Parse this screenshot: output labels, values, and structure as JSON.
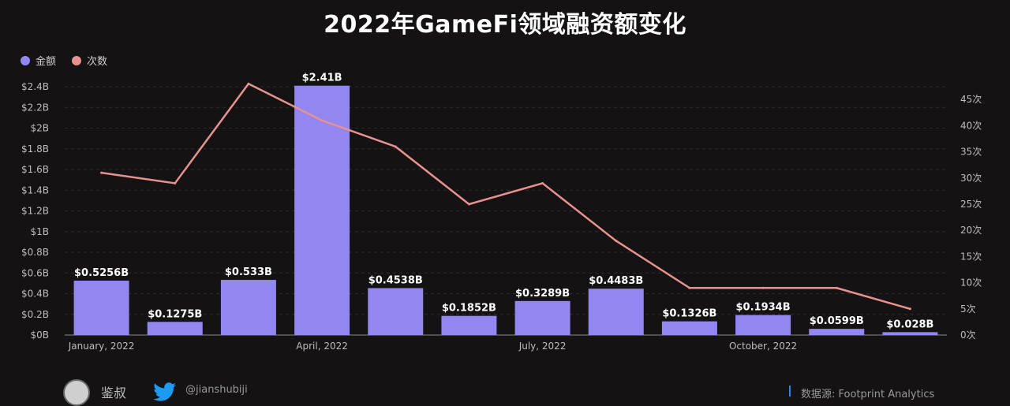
{
  "title": "2022年GameFi领域融资额变化",
  "legend": {
    "amount": {
      "label": "金额",
      "color": "#9287f0"
    },
    "count": {
      "label": "次数",
      "color": "#e8928f"
    }
  },
  "chart_data": {
    "type": "bar",
    "title": "2022年GameFi领域融资额变化",
    "categories": [
      "2022-01",
      "2022-02",
      "2022-03",
      "2022-04",
      "2022-05",
      "2022-06",
      "2022-07",
      "2022-08",
      "2022-09",
      "2022-10",
      "2022-11",
      "2022-12"
    ],
    "x_tick_labels": [
      {
        "index": 0,
        "label": "January, 2022"
      },
      {
        "index": 3,
        "label": "April, 2022"
      },
      {
        "index": 6,
        "label": "July, 2022"
      },
      {
        "index": 9,
        "label": "October, 2022"
      }
    ],
    "series": [
      {
        "name": "金额",
        "type": "bar",
        "axis": "left",
        "color": "#9287f0",
        "values": [
          0.5256,
          0.1275,
          0.533,
          2.41,
          0.4538,
          0.1852,
          0.3289,
          0.4483,
          0.1326,
          0.1934,
          0.0599,
          0.028
        ],
        "data_labels": [
          "$0.5256B",
          "$0.1275B",
          "$0.533B",
          "$2.41B",
          "$0.4538B",
          "$0.1852B",
          "$0.3289B",
          "$0.4483B",
          "$0.1326B",
          "$0.1934B",
          "$0.0599B",
          "$0.028B"
        ]
      },
      {
        "name": "次数",
        "type": "line",
        "axis": "right",
        "color": "#e8928f",
        "values": [
          31,
          29,
          48,
          41,
          36,
          25,
          29,
          18,
          9,
          9,
          9,
          5
        ]
      }
    ],
    "y_left": {
      "ylim": [
        0,
        2.4
      ],
      "ticks": [
        0,
        0.2,
        0.4,
        0.6,
        0.8,
        1.0,
        1.2,
        1.4,
        1.6,
        1.8,
        2.0,
        2.2,
        2.4
      ],
      "tick_labels": [
        "$0B",
        "$0.2B",
        "$0.4B",
        "$0.6B",
        "$0.8B",
        "$1B",
        "$1.2B",
        "$1.4B",
        "$1.6B",
        "$1.8B",
        "$2B",
        "$2.2B",
        "$2.4B"
      ]
    },
    "y_right": {
      "ticks": [
        0,
        5,
        10,
        15,
        20,
        25,
        30,
        35,
        40,
        45
      ],
      "tick_labels": [
        "0次",
        "5次",
        "10次",
        "15次",
        "20次",
        "25次",
        "30次",
        "35次",
        "40次",
        "45次"
      ]
    },
    "grid": true,
    "legend_position": "top-left"
  },
  "footer": {
    "name": "鉴叔",
    "handle": "@jianshubiji",
    "source": "数据源: Footprint Analytics"
  }
}
